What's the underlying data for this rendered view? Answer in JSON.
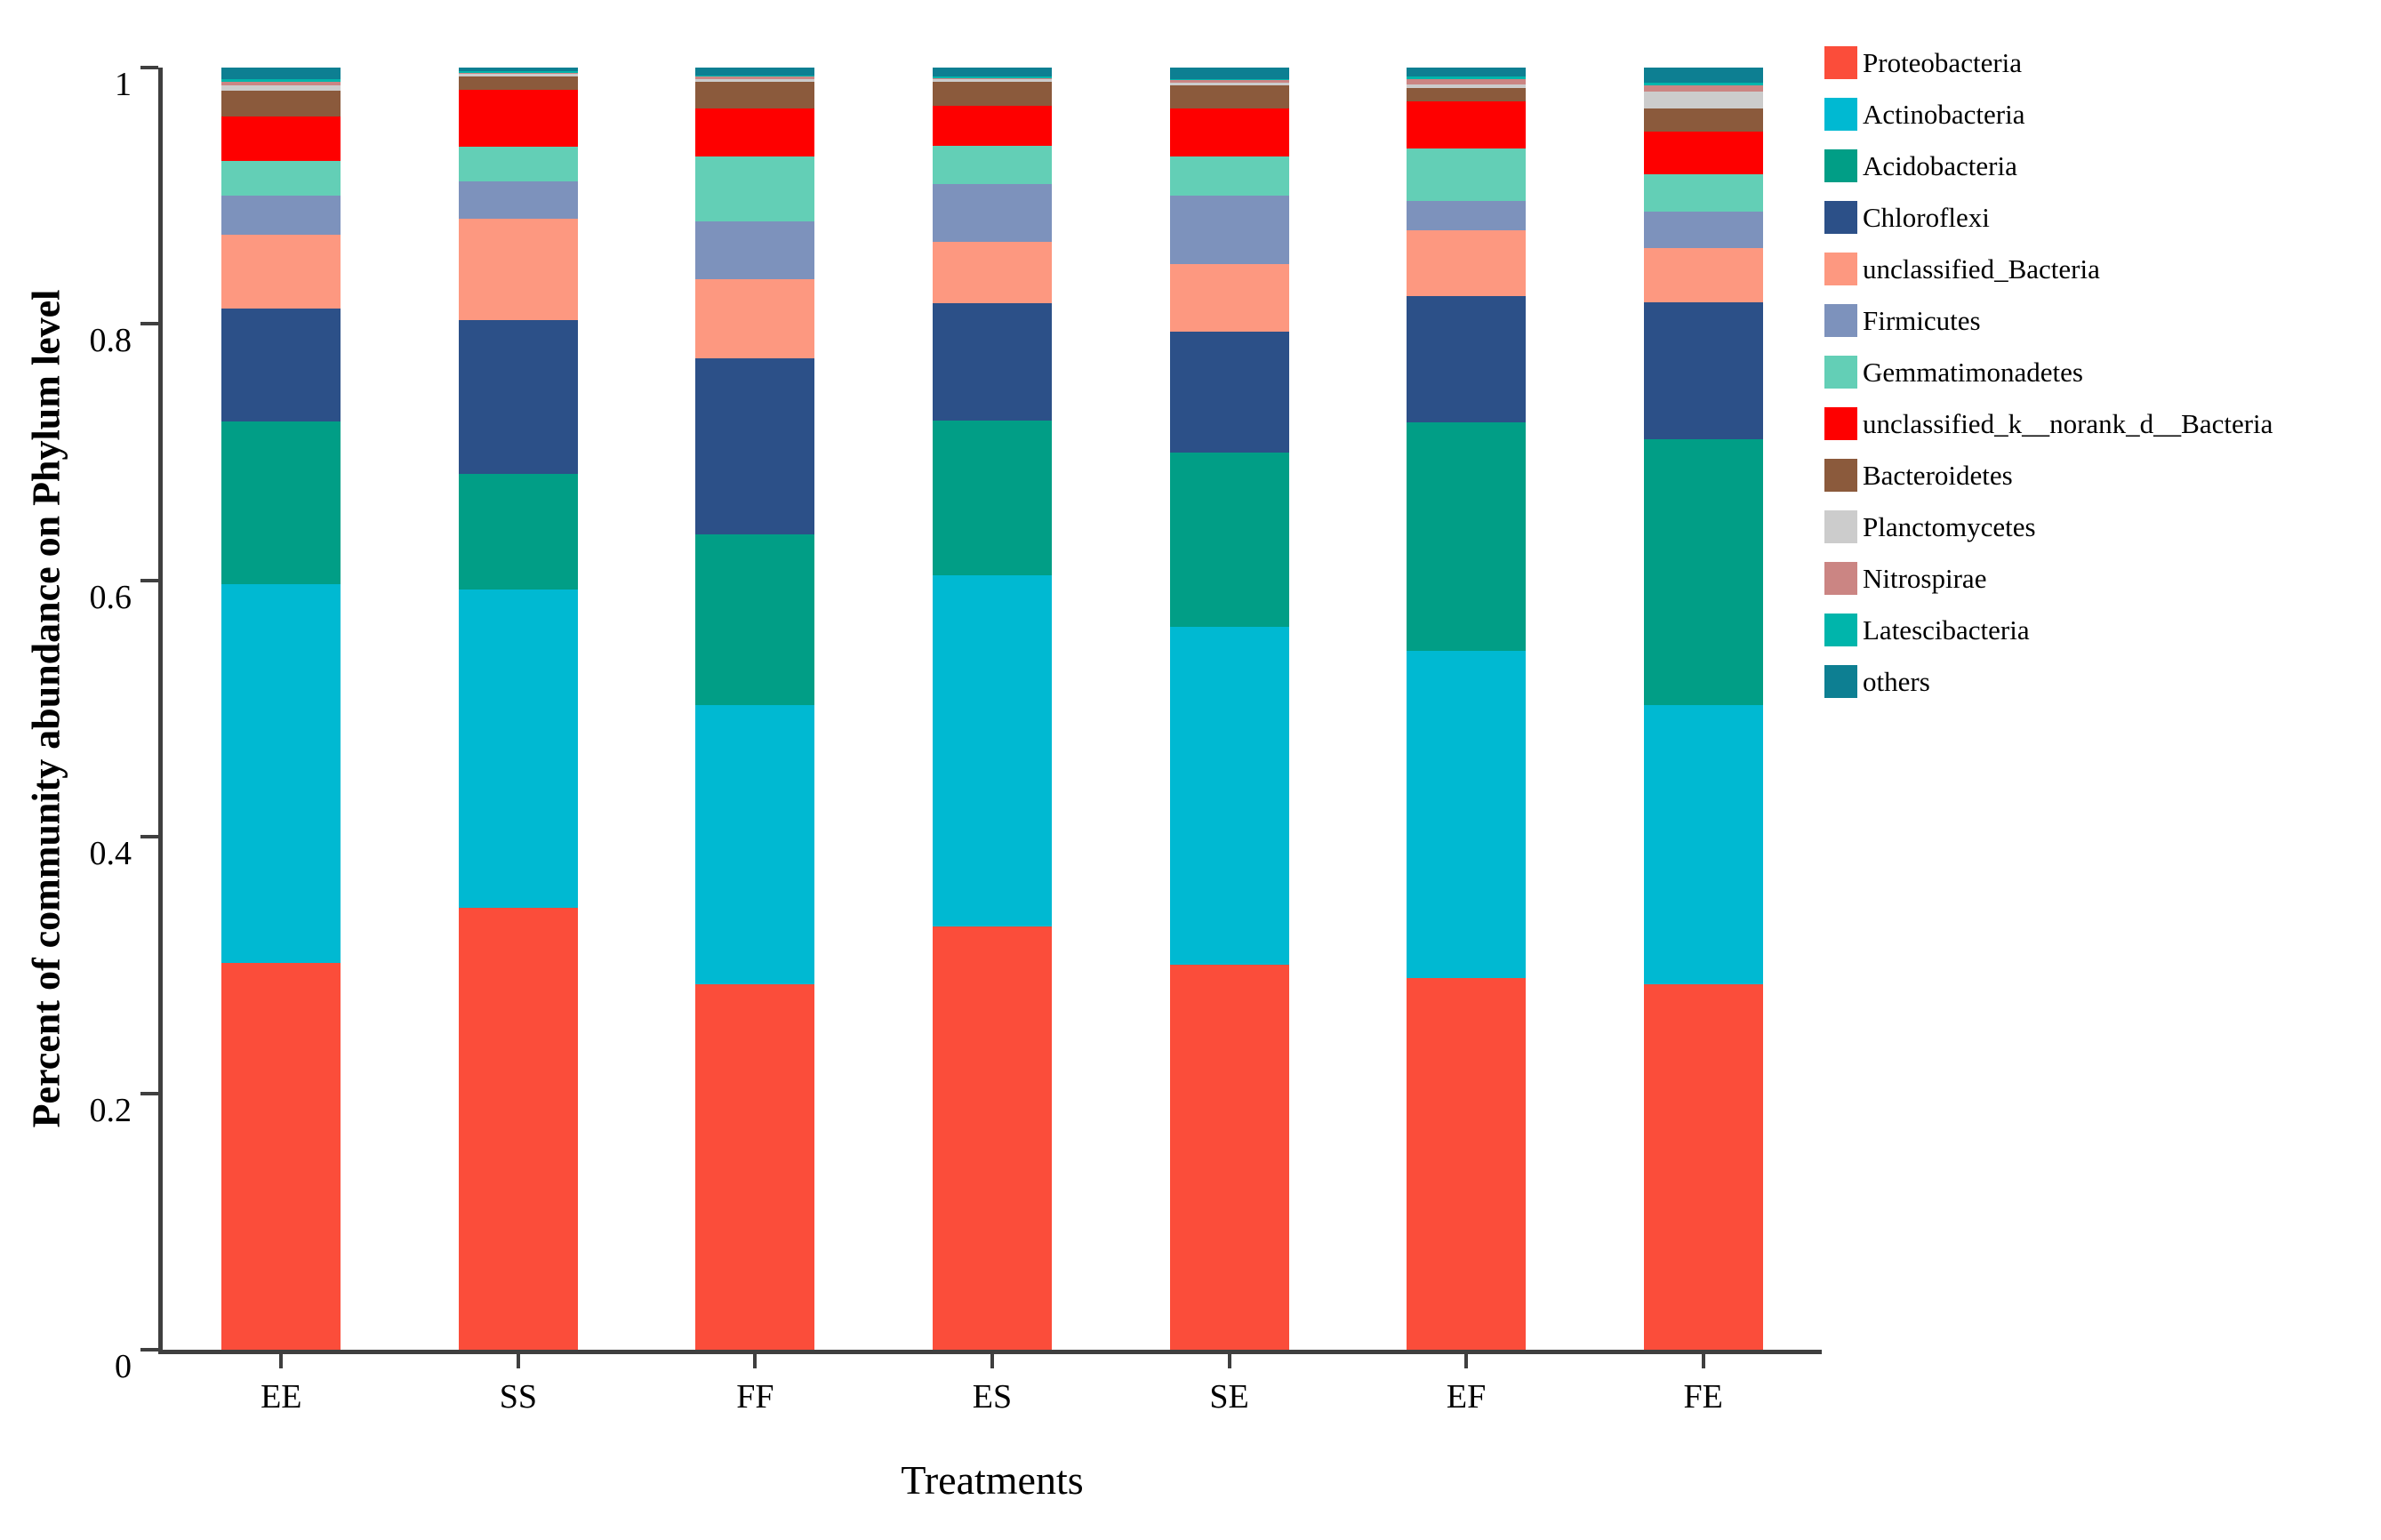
{
  "figure": {
    "background": "#ffffff",
    "axis_color": "#3f3f3f"
  },
  "chart_data": {
    "type": "bar",
    "stacked": true,
    "title": "",
    "xlabel": "Treatments",
    "ylabel": "Percent of community abundance on Phylum level",
    "ylim": [
      0,
      1
    ],
    "grid": false,
    "legend_position": "right",
    "yticks": [
      "0",
      "0.2",
      "0.4",
      "0.6",
      "0.8",
      "1"
    ],
    "ytick_values": [
      0,
      0.2,
      0.4,
      0.6,
      0.8,
      1
    ],
    "categories": [
      "EE",
      "SS",
      "FF",
      "ES",
      "SE",
      "EF",
      "FE"
    ],
    "series": [
      {
        "name": "Proteobacteria",
        "color": "#fb4d3a",
        "values": [
          0.302,
          0.345,
          0.285,
          0.33,
          0.3,
          0.29,
          0.285
        ]
      },
      {
        "name": "Actinobacteria",
        "color": "#00b9d2",
        "values": [
          0.295,
          0.248,
          0.218,
          0.274,
          0.264,
          0.255,
          0.218
        ]
      },
      {
        "name": "Acidobacteria",
        "color": "#019e86",
        "values": [
          0.127,
          0.09,
          0.133,
          0.121,
          0.136,
          0.178,
          0.207
        ]
      },
      {
        "name": "Chloroflexi",
        "color": "#2c5088",
        "values": [
          0.088,
          0.12,
          0.137,
          0.091,
          0.094,
          0.099,
          0.107
        ]
      },
      {
        "name": "unclassified_Bacteria",
        "color": "#fd9880",
        "values": [
          0.058,
          0.079,
          0.062,
          0.048,
          0.053,
          0.051,
          0.042
        ]
      },
      {
        "name": "Firmicutes",
        "color": "#7d92bc",
        "values": [
          0.03,
          0.029,
          0.045,
          0.045,
          0.053,
          0.023,
          0.029
        ]
      },
      {
        "name": "Gemmatimonadetes",
        "color": "#63cfb6",
        "values": [
          0.027,
          0.027,
          0.051,
          0.03,
          0.031,
          0.041,
          0.029
        ]
      },
      {
        "name": "unclassified_k__norank_d__Bacteria",
        "color": "#fe0000",
        "values": [
          0.035,
          0.045,
          0.037,
          0.031,
          0.037,
          0.037,
          0.033
        ]
      },
      {
        "name": "Bacteroidetes",
        "color": "#8b5a3c",
        "values": [
          0.02,
          0.01,
          0.021,
          0.019,
          0.018,
          0.01,
          0.018
        ]
      },
      {
        "name": "Planctomycetes",
        "color": "#cccccc",
        "values": [
          0.004,
          0.002,
          0.002,
          0.002,
          0.002,
          0.003,
          0.013
        ]
      },
      {
        "name": "Nitrospirae",
        "color": "#cb8583",
        "values": [
          0.003,
          0.001,
          0.002,
          0.001,
          0.002,
          0.004,
          0.005
        ]
      },
      {
        "name": "Latescibacteria",
        "color": "#00b5ab",
        "values": [
          0.002,
          0.001,
          0.001,
          0.001,
          0.001,
          0.002,
          0.002
        ]
      },
      {
        "name": "others",
        "color": "#0d7f92",
        "values": [
          0.009,
          0.003,
          0.006,
          0.007,
          0.009,
          0.007,
          0.012
        ]
      }
    ]
  }
}
